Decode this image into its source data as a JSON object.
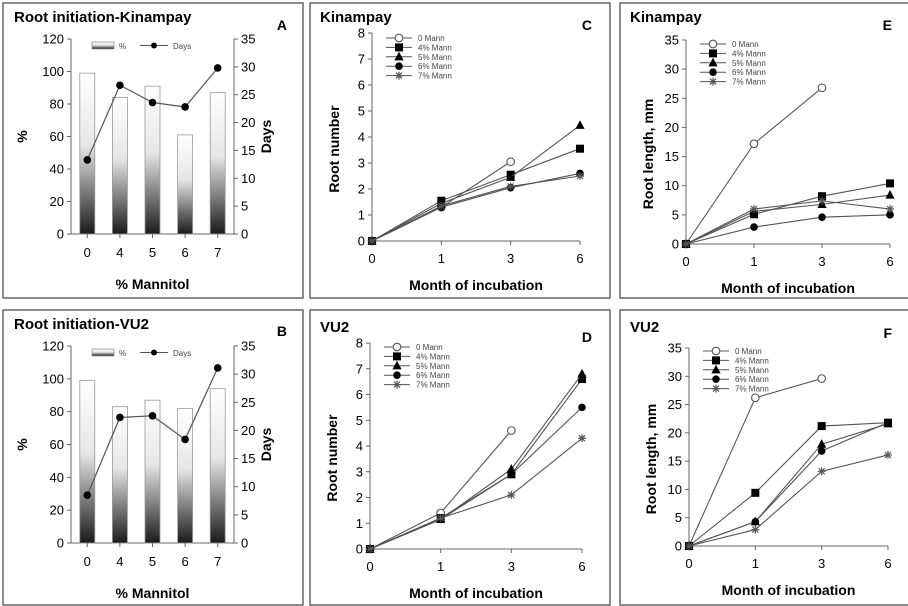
{
  "chart_data": [
    {
      "panel": "A",
      "type": "bar",
      "title": "Root initiation-Kinampay",
      "categories": [
        "0",
        "4",
        "5",
        "6",
        "7"
      ],
      "xlabel": "% Mannitol",
      "ylabel": "%",
      "y2label": "Days",
      "ylim": [
        0,
        120
      ],
      "y2lim": [
        0,
        35
      ],
      "yticks": [
        "0",
        "20",
        "40",
        "60",
        "80",
        "100",
        "120"
      ],
      "y2ticks": [
        "0",
        "5",
        "10",
        "15",
        "20",
        "25",
        "30",
        "35"
      ],
      "legend": {
        "bar_label": "%",
        "line_label": "Days",
        "placement": "top"
      },
      "series": [
        {
          "name": "%",
          "kind": "bar",
          "values": [
            99,
            84,
            91,
            61,
            87
          ]
        },
        {
          "name": "Days",
          "kind": "line",
          "axis": "right",
          "values": [
            13.3,
            26.7,
            23.6,
            22.8,
            29.8
          ]
        }
      ]
    },
    {
      "panel": "B",
      "type": "bar",
      "title": "Root initiation-VU2",
      "categories": [
        "0",
        "4",
        "5",
        "6",
        "7"
      ],
      "xlabel": "% Mannitol",
      "ylabel": "%",
      "y2label": "Days",
      "ylim": [
        0,
        120
      ],
      "y2lim": [
        0,
        35
      ],
      "yticks": [
        "0",
        "20",
        "40",
        "60",
        "80",
        "100",
        "120"
      ],
      "y2ticks": [
        "0",
        "5",
        "10",
        "15",
        "20",
        "25",
        "30",
        "35"
      ],
      "legend": {
        "bar_label": "%",
        "line_label": "Days",
        "placement": "top"
      },
      "series": [
        {
          "name": "%",
          "kind": "bar",
          "values": [
            99,
            83,
            87,
            82,
            94
          ]
        },
        {
          "name": "Days",
          "kind": "line",
          "axis": "right",
          "values": [
            8.5,
            22.3,
            22.6,
            18.4,
            31.1
          ]
        }
      ]
    },
    {
      "panel": "C",
      "type": "line",
      "title": "Kinampay",
      "x": [
        "0",
        "1",
        "3",
        "6"
      ],
      "xlabel": "Month of incubation",
      "ylabel": "Root number",
      "ylim": [
        0,
        8
      ],
      "yticks": [
        "0",
        "1",
        "2",
        "3",
        "4",
        "5",
        "6",
        "7",
        "8"
      ],
      "legend": {
        "placement": "top-left"
      },
      "series": [
        {
          "name": "0 Mann",
          "marker": "open-circle",
          "values": [
            0,
            1.3,
            3.05,
            null
          ]
        },
        {
          "name": "4% Mann",
          "marker": "square",
          "values": [
            0,
            1.55,
            2.55,
            3.55
          ]
        },
        {
          "name": "5% Mann",
          "marker": "triangle",
          "values": [
            0,
            1.45,
            2.45,
            4.45
          ]
        },
        {
          "name": "6% Mann",
          "marker": "circle",
          "values": [
            0,
            1.3,
            2.05,
            2.6
          ]
        },
        {
          "name": "7% Mann",
          "marker": "star",
          "values": [
            0,
            1.35,
            2.1,
            2.5
          ]
        }
      ]
    },
    {
      "panel": "D",
      "type": "line",
      "title": "VU2",
      "x": [
        "0",
        "1",
        "3",
        "6"
      ],
      "xlabel": "Month of incubation",
      "ylabel": "Root number",
      "ylim": [
        0,
        8
      ],
      "yticks": [
        "0",
        "1",
        "2",
        "3",
        "4",
        "5",
        "6",
        "7",
        "8"
      ],
      "legend": {
        "placement": "top-left"
      },
      "series": [
        {
          "name": "0 Mann",
          "marker": "open-circle",
          "values": [
            0,
            1.4,
            4.6,
            null
          ]
        },
        {
          "name": "4% Mann",
          "marker": "square",
          "values": [
            0,
            1.2,
            2.9,
            6.6
          ]
        },
        {
          "name": "5% Mann",
          "marker": "triangle",
          "values": [
            0,
            1.15,
            3.1,
            6.8
          ]
        },
        {
          "name": "6% Mann",
          "marker": "circle",
          "values": [
            0,
            1.15,
            2.9,
            5.5
          ]
        },
        {
          "name": "7% Mann",
          "marker": "star",
          "values": [
            0,
            1.2,
            2.1,
            4.3
          ]
        }
      ]
    },
    {
      "panel": "E",
      "type": "line",
      "title": "Kinampay",
      "x": [
        "0",
        "1",
        "3",
        "6"
      ],
      "xlabel": "Month of incubation",
      "ylabel": "Root length, mm",
      "ylim": [
        0,
        35
      ],
      "yticks": [
        "0",
        "5",
        "10",
        "15",
        "20",
        "25",
        "30",
        "35"
      ],
      "legend": {
        "placement": "top-left"
      },
      "series": [
        {
          "name": "0 Mann",
          "marker": "open-circle",
          "values": [
            0,
            17.2,
            26.8,
            null
          ]
        },
        {
          "name": "4% Mann",
          "marker": "square",
          "values": [
            0,
            5.1,
            8.2,
            10.4
          ]
        },
        {
          "name": "5% Mann",
          "marker": "triangle",
          "values": [
            0,
            5.6,
            6.8,
            8.4
          ]
        },
        {
          "name": "6% Mann",
          "marker": "circle",
          "values": [
            0,
            2.9,
            4.6,
            5.0
          ]
        },
        {
          "name": "7% Mann",
          "marker": "star",
          "values": [
            0,
            6.0,
            7.4,
            6.0
          ]
        }
      ]
    },
    {
      "panel": "F",
      "type": "line",
      "title": "VU2",
      "x": [
        "0",
        "1",
        "3",
        "6"
      ],
      "xlabel": "Month of incubation",
      "ylabel": "Root length, mm",
      "ylim": [
        0,
        35
      ],
      "yticks": [
        "0",
        "5",
        "10",
        "15",
        "20",
        "25",
        "30",
        "35"
      ],
      "legend": {
        "placement": "top-left"
      },
      "series": [
        {
          "name": "0 Mann",
          "marker": "open-circle",
          "values": [
            0,
            26.2,
            29.6,
            null
          ]
        },
        {
          "name": "4% Mann",
          "marker": "square",
          "values": [
            0,
            9.4,
            21.2,
            21.8
          ]
        },
        {
          "name": "5% Mann",
          "marker": "triangle",
          "values": [
            0,
            4.3,
            18.0,
            21.6
          ]
        },
        {
          "name": "6% Mann",
          "marker": "circle",
          "values": [
            0,
            4.3,
            16.8,
            21.8
          ]
        },
        {
          "name": "7% Mann",
          "marker": "star",
          "values": [
            0,
            2.9,
            13.2,
            16.1
          ]
        }
      ]
    }
  ]
}
